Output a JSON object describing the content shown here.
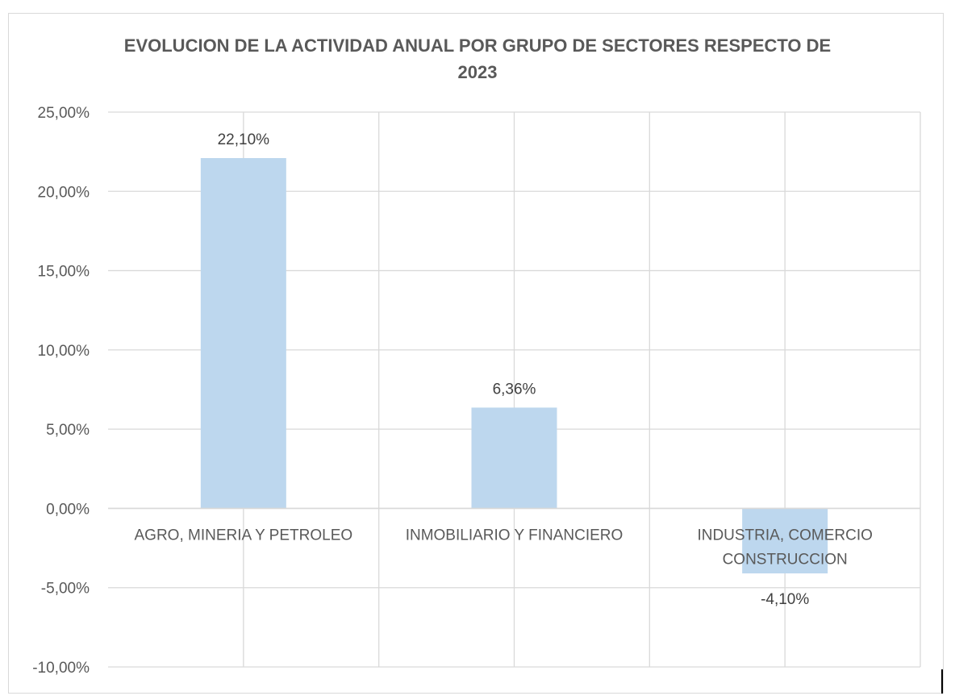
{
  "chart_data": {
    "type": "bar",
    "title_lines": [
      "EVOLUCION DE LA ACTIVIDAD ANUAL POR GRUPO DE SECTORES RESPECTO DE",
      "2023"
    ],
    "categories": [
      [
        "AGRO, MINERIA Y PETROLEO"
      ],
      [
        "INMOBILIARIO Y FINANCIERO"
      ],
      [
        "INDUSTRIA, COMERCIO",
        "CONSTRUCCION"
      ]
    ],
    "values": [
      22.1,
      6.36,
      -4.1
    ],
    "data_labels": [
      "22,10%",
      "6,36%",
      "-4,10%"
    ],
    "ylim": [
      -10,
      25
    ],
    "ytick_values": [
      25,
      20,
      15,
      10,
      5,
      0,
      -5,
      -10
    ],
    "ytick_labels": [
      "25,00%",
      "20,00%",
      "15,00%",
      "10,00%",
      "5,00%",
      "0,00%",
      "-5,00%",
      "-10,00%"
    ],
    "xlabel": "",
    "ylabel": "",
    "grid": true,
    "bar_color": "#bdd7ee",
    "grid_color": "#d9d9d9"
  }
}
